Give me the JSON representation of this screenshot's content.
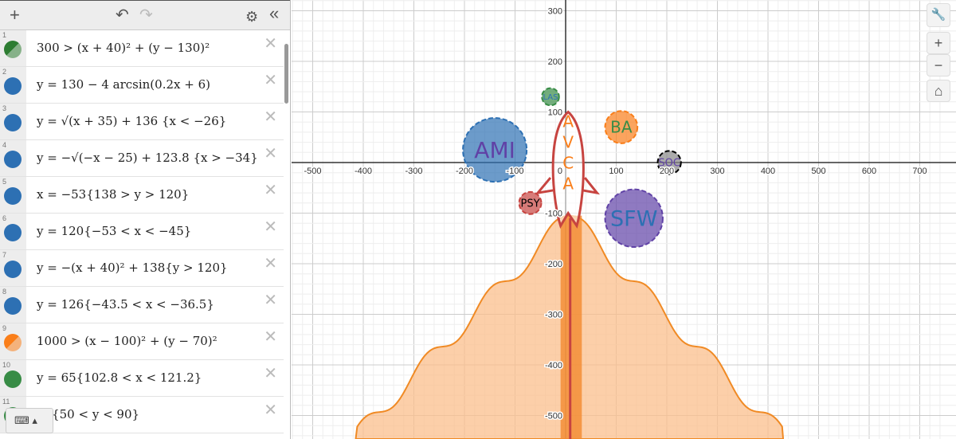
{
  "toolbar": {
    "add": "+",
    "undo": "↶",
    "redo": "↷",
    "settings": "⚙",
    "collapse": "«"
  },
  "expressions": [
    {
      "n": "1",
      "text": "300 > (x + 40)² + (y − 130)²",
      "color": "#2d7d32",
      "kind": "inequality"
    },
    {
      "n": "2",
      "text": "y = 130 − 4 arcsin(0.2x + 6)",
      "color": "#2d70b3",
      "kind": "curve"
    },
    {
      "n": "3",
      "text": "y = √(x + 35) + 136 {x < −26}",
      "color": "#2d70b3",
      "kind": "curve"
    },
    {
      "n": "4",
      "text": "y = −√(−x − 25) + 123.8 {x > −34}",
      "color": "#2d70b3",
      "kind": "curve"
    },
    {
      "n": "5",
      "text": "x = −53{138 > y > 120}",
      "color": "#2d70b3",
      "kind": "curve"
    },
    {
      "n": "6",
      "text": "y = 120{−53 < x < −45}",
      "color": "#2d70b3",
      "kind": "curve"
    },
    {
      "n": "7",
      "text": "y = −(x + 40)² + 138{y > 120}",
      "color": "#2d70b3",
      "kind": "curve"
    },
    {
      "n": "8",
      "text": "y = 126{−43.5 < x < −36.5}",
      "color": "#2d70b3",
      "kind": "curve"
    },
    {
      "n": "9",
      "text": "1000 > (x − 100)² + (y − 70)²",
      "color": "#fa7e19",
      "kind": "inequality"
    },
    {
      "n": "10",
      "text": "y = 65{102.8 < x < 121.2}",
      "color": "#388c46",
      "kind": "curve"
    },
    {
      "n": "11",
      "text": "     80{50 < y < 90}",
      "color": "#388c46",
      "kind": "curve"
    }
  ],
  "keyboard": {
    "icon": "⌨ ▴"
  },
  "graph": {
    "x_ticks": [
      -500,
      -400,
      -300,
      -200,
      -100,
      0,
      100,
      200,
      300,
      400,
      500,
      600,
      700
    ],
    "y_ticks": [
      300,
      200,
      100,
      -100,
      -200,
      -300,
      -400,
      -500
    ],
    "labels": {
      "ami": "AMI",
      "las": "LAS",
      "ba": "BA",
      "soc": "SOC",
      "psy": "PSY",
      "sfw": "SFW",
      "rocket": "AVCA"
    }
  },
  "controls": {
    "wrench": "🔧",
    "zoom_in": "+",
    "zoom_out": "−",
    "home": "⌂"
  }
}
